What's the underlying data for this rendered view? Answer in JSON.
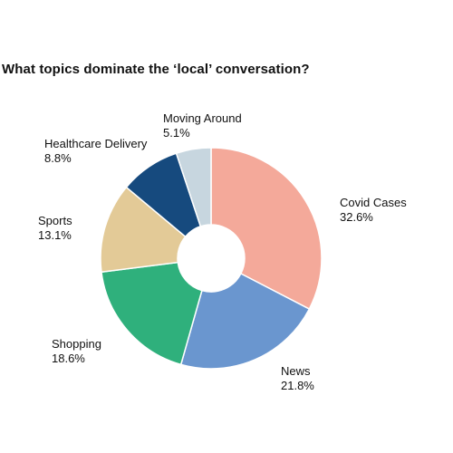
{
  "chart_data": {
    "type": "pie",
    "title": "What topics dominate the ‘local’ conversation?",
    "donut": true,
    "slices": [
      {
        "label": "Covid Cases",
        "value": 32.6,
        "display": "32.6%",
        "color": "#F4A99A"
      },
      {
        "label": "News",
        "value": 21.8,
        "display": "21.8%",
        "color": "#6A96CF"
      },
      {
        "label": "Shopping",
        "value": 18.6,
        "display": "18.6%",
        "color": "#2FB07C"
      },
      {
        "label": "Sports",
        "value": 13.1,
        "display": "13.1%",
        "color": "#E3CA97"
      },
      {
        "label": "Healthcare Delivery",
        "value": 8.8,
        "display": "8.8%",
        "color": "#164A7E"
      },
      {
        "label": "Moving Around",
        "value": 5.1,
        "display": "5.1%",
        "color": "#C7D6DF"
      }
    ]
  }
}
